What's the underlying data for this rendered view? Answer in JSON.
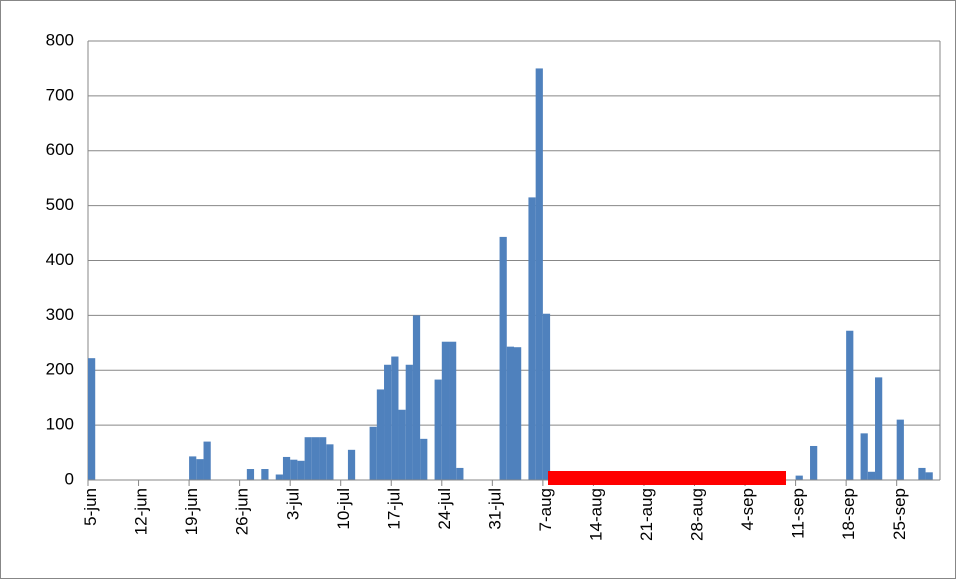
{
  "chart_data": {
    "type": "bar",
    "color": "#4f81bd",
    "grid": true,
    "categories": [
      "5-jun",
      null,
      null,
      null,
      null,
      null,
      null,
      "12-jun",
      null,
      null,
      null,
      null,
      null,
      null,
      "19-jun",
      null,
      null,
      null,
      null,
      null,
      null,
      "26-jun",
      null,
      null,
      null,
      null,
      null,
      null,
      "3-jul",
      null,
      null,
      null,
      null,
      null,
      null,
      "10-jul",
      null,
      null,
      null,
      null,
      null,
      null,
      "17-jul",
      null,
      null,
      null,
      null,
      null,
      null,
      "24-jul",
      null,
      null,
      null,
      null,
      null,
      null,
      "31-jul",
      null,
      null,
      null,
      null,
      null,
      null,
      "7-aug",
      null,
      null,
      null,
      null,
      null,
      null,
      "14-aug",
      null,
      null,
      null,
      null,
      null,
      null,
      "21-aug",
      null,
      null,
      null,
      null,
      null,
      null,
      "28-aug",
      null,
      null,
      null,
      null,
      null,
      null,
      "4-sep",
      null,
      null,
      null,
      null,
      null,
      null,
      "11-sep",
      null,
      null,
      null,
      null,
      null,
      null,
      "18-sep",
      null,
      null,
      null,
      null,
      null,
      null,
      "25-sep",
      null,
      null,
      null,
      null,
      null
    ],
    "values": [
      222,
      0,
      0,
      0,
      0,
      0,
      0,
      0,
      0,
      0,
      0,
      0,
      0,
      0,
      43,
      38,
      70,
      0,
      0,
      0,
      0,
      0,
      20,
      0,
      20,
      0,
      10,
      42,
      37,
      35,
      78,
      78,
      78,
      65,
      0,
      0,
      55,
      0,
      0,
      97,
      165,
      210,
      225,
      128,
      210,
      300,
      75,
      0,
      183,
      252,
      252,
      22,
      0,
      0,
      0,
      0,
      0,
      443,
      243,
      242,
      0,
      515,
      750,
      303,
      0,
      0,
      0,
      0,
      0,
      0,
      0,
      0,
      0,
      0,
      0,
      0,
      0,
      0,
      0,
      0,
      0,
      0,
      0,
      0,
      0,
      0,
      0,
      0,
      0,
      0,
      0,
      0,
      0,
      0,
      0,
      0,
      0,
      0,
      8,
      0,
      62,
      0,
      0,
      0,
      0,
      272,
      0,
      85,
      15,
      187,
      0,
      0,
      110,
      0,
      0,
      22,
      14,
      0
    ],
    "ylim": [
      0,
      800
    ],
    "yticks": [
      0,
      100,
      200,
      300,
      400,
      500,
      600,
      700,
      800
    ]
  }
}
